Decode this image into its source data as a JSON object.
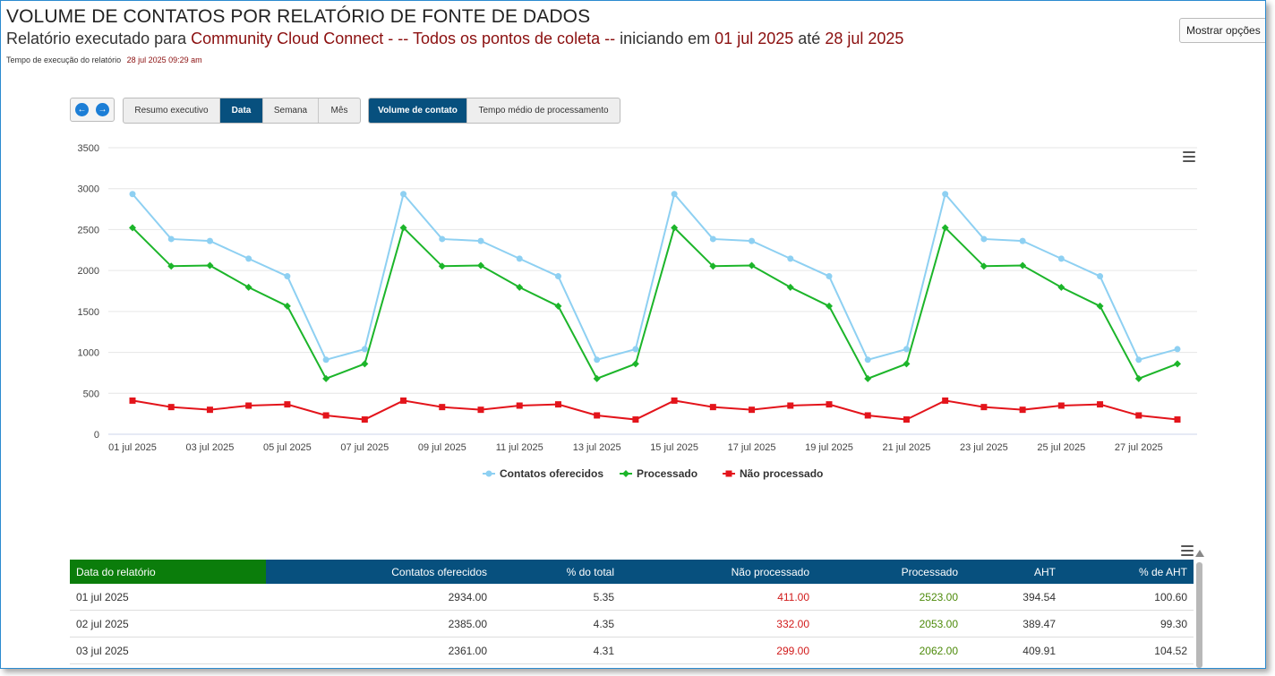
{
  "header": {
    "title": "VOLUME DE CONTATOS POR RELATÓRIO DE FONTE DE DADOS",
    "sub_prefix": "Relatório executado para",
    "sub_source": "Community Cloud Connect",
    "sub_points": "- -- Todos os pontos de coleta --",
    "sub_start_text": "iniciando em",
    "sub_start_date": "01 jul 2025",
    "sub_until_text": "até",
    "sub_end_date": "28 jul 2025",
    "exec_label": "Tempo de execução do relatório",
    "exec_value": "28 jul 2025 09:29 am",
    "options_button": "Mostrar opções"
  },
  "nav": {
    "prev_icon": "arrow-left-icon",
    "next_icon": "arrow-right-icon"
  },
  "view_tabs": [
    "Resumo executivo",
    "Data",
    "Semana",
    "Mês"
  ],
  "view_tab_active": "Data",
  "metric_tabs": [
    "Volume de contato",
    "Tempo médio de processamento"
  ],
  "metric_tab_active": "Volume de contato",
  "colors": {
    "offered": "#8ed0f2",
    "processed": "#1cb52a",
    "not_processed": "#e3141b",
    "header_bg": "#07507e",
    "first_col_bg": "#0b7d0b"
  },
  "chart_data": {
    "type": "line",
    "x": [
      "01 jul 2025",
      "02 jul 2025",
      "03 jul 2025",
      "04 jul 2025",
      "05 jul 2025",
      "06 jul 2025",
      "07 jul 2025",
      "08 jul 2025",
      "09 jul 2025",
      "10 jul 2025",
      "11 jul 2025",
      "12 jul 2025",
      "13 jul 2025",
      "14 jul 2025",
      "15 jul 2025",
      "16 jul 2025",
      "17 jul 2025",
      "18 jul 2025",
      "19 jul 2025",
      "20 jul 2025",
      "21 jul 2025",
      "22 jul 2025",
      "23 jul 2025",
      "24 jul 2025",
      "25 jul 2025",
      "26 jul 2025",
      "27 jul 2025",
      "28 jul 2025"
    ],
    "x_tick_labels": [
      "01 jul 2025",
      "03 jul 2025",
      "05 jul 2025",
      "07 jul 2025",
      "09 jul 2025",
      "11 jul 2025",
      "13 jul 2025",
      "15 jul 2025",
      "17 jul 2025",
      "19 jul 2025",
      "21 jul 2025",
      "23 jul 2025",
      "25 jul 2025",
      "27 jul 2025"
    ],
    "y_ticks": [
      0,
      500,
      1000,
      1500,
      2000,
      2500,
      3000,
      3500
    ],
    "ylim": [
      0,
      3500
    ],
    "grid": true,
    "legend_position": "bottom-center",
    "series": [
      {
        "name": "Contatos oferecidos",
        "marker": "circle",
        "values": [
          2934,
          2385,
          2361,
          2145,
          1930,
          910,
          1040,
          2934,
          2385,
          2361,
          2145,
          1930,
          910,
          1040,
          2934,
          2385,
          2361,
          2145,
          1930,
          910,
          1040,
          2934,
          2385,
          2361,
          2145,
          1930,
          910,
          1040
        ]
      },
      {
        "name": "Processado",
        "marker": "diamond",
        "values": [
          2523,
          2053,
          2062,
          1795,
          1565,
          680,
          860,
          2523,
          2053,
          2062,
          1795,
          1565,
          680,
          860,
          2523,
          2053,
          2062,
          1795,
          1565,
          680,
          860,
          2523,
          2053,
          2062,
          1795,
          1565,
          680,
          860
        ]
      },
      {
        "name": "Não processado",
        "marker": "square",
        "values": [
          411,
          332,
          299,
          350,
          365,
          230,
          180,
          411,
          332,
          299,
          350,
          365,
          230,
          180,
          411,
          332,
          299,
          350,
          365,
          230,
          180,
          411,
          332,
          299,
          350,
          365,
          230,
          180
        ]
      }
    ]
  },
  "table": {
    "headers": [
      "Data do relatório",
      "Contatos oferecidos",
      "% do total",
      "Não processado",
      "Processado",
      "AHT",
      "% de AHT"
    ],
    "rows": [
      [
        "01 jul 2025",
        "2934.00",
        "5.35",
        "411.00",
        "2523.00",
        "394.54",
        "100.60"
      ],
      [
        "02 jul 2025",
        "2385.00",
        "4.35",
        "332.00",
        "2053.00",
        "389.47",
        "99.30"
      ],
      [
        "03 jul 2025",
        "2361.00",
        "4.31",
        "299.00",
        "2062.00",
        "409.91",
        "104.52"
      ]
    ]
  }
}
